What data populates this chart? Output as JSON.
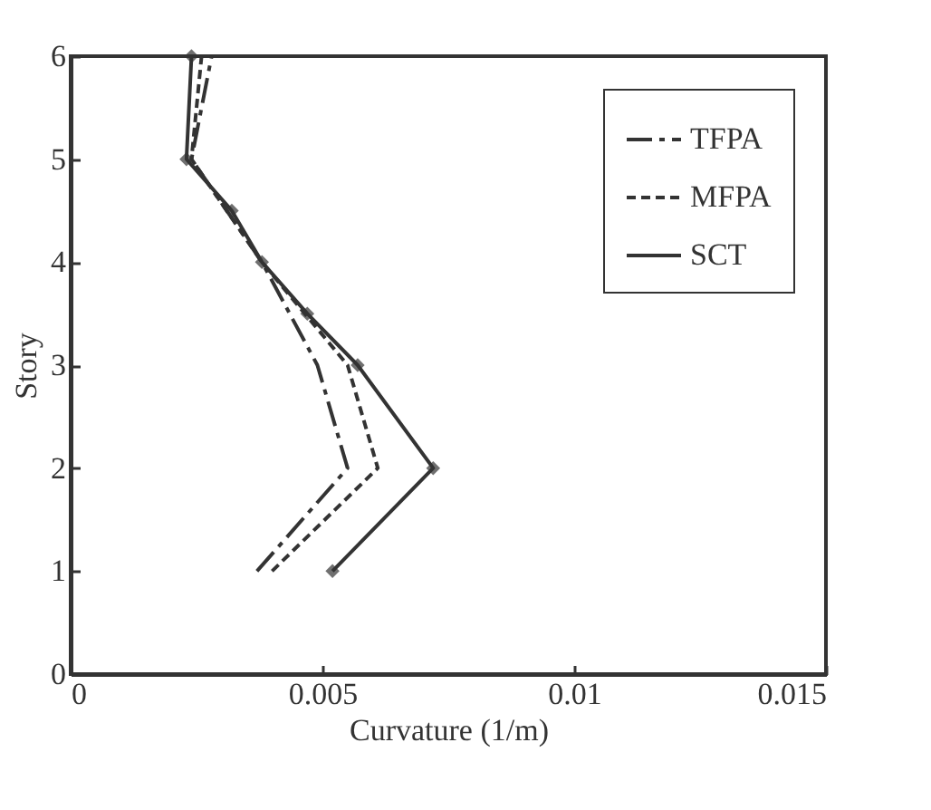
{
  "chart_data": {
    "type": "line",
    "xlabel": "Curvature (1/m)",
    "ylabel": "Story",
    "xlim": [
      0,
      0.015
    ],
    "xticks": [
      0,
      0.005,
      0.01,
      0.015
    ],
    "ylim": [
      0,
      6
    ],
    "yticks": [
      0,
      1,
      2,
      3,
      4,
      5,
      6
    ],
    "grid": false,
    "legend": "top right",
    "series": [
      {
        "name": "TFPA",
        "color": "#333333",
        "line_style": "dashed",
        "marker": "none",
        "x": [
          0.0037,
          0.0055,
          0.0049,
          0.0038,
          0.0024,
          0.0028
        ],
        "values": [
          1,
          2,
          3,
          4,
          5,
          6
        ]
      },
      {
        "name": "MFPA",
        "color": "#333333",
        "line_style": "dotted",
        "marker": "none",
        "x": [
          0.004,
          0.0061,
          0.0055,
          0.0038,
          0.0024,
          0.0026
        ],
        "values": [
          1,
          2,
          3,
          4,
          5,
          6
        ]
      },
      {
        "name": "SCT",
        "color": "#333333",
        "line_style": "solid",
        "marker": "diamond",
        "x": [
          0.0052,
          0.0072,
          0.0057,
          0.0047,
          0.0038,
          0.0032,
          0.0023,
          0.0024
        ],
        "values": [
          1,
          2,
          3,
          3.5,
          4,
          4.5,
          5,
          6
        ]
      }
    ]
  }
}
